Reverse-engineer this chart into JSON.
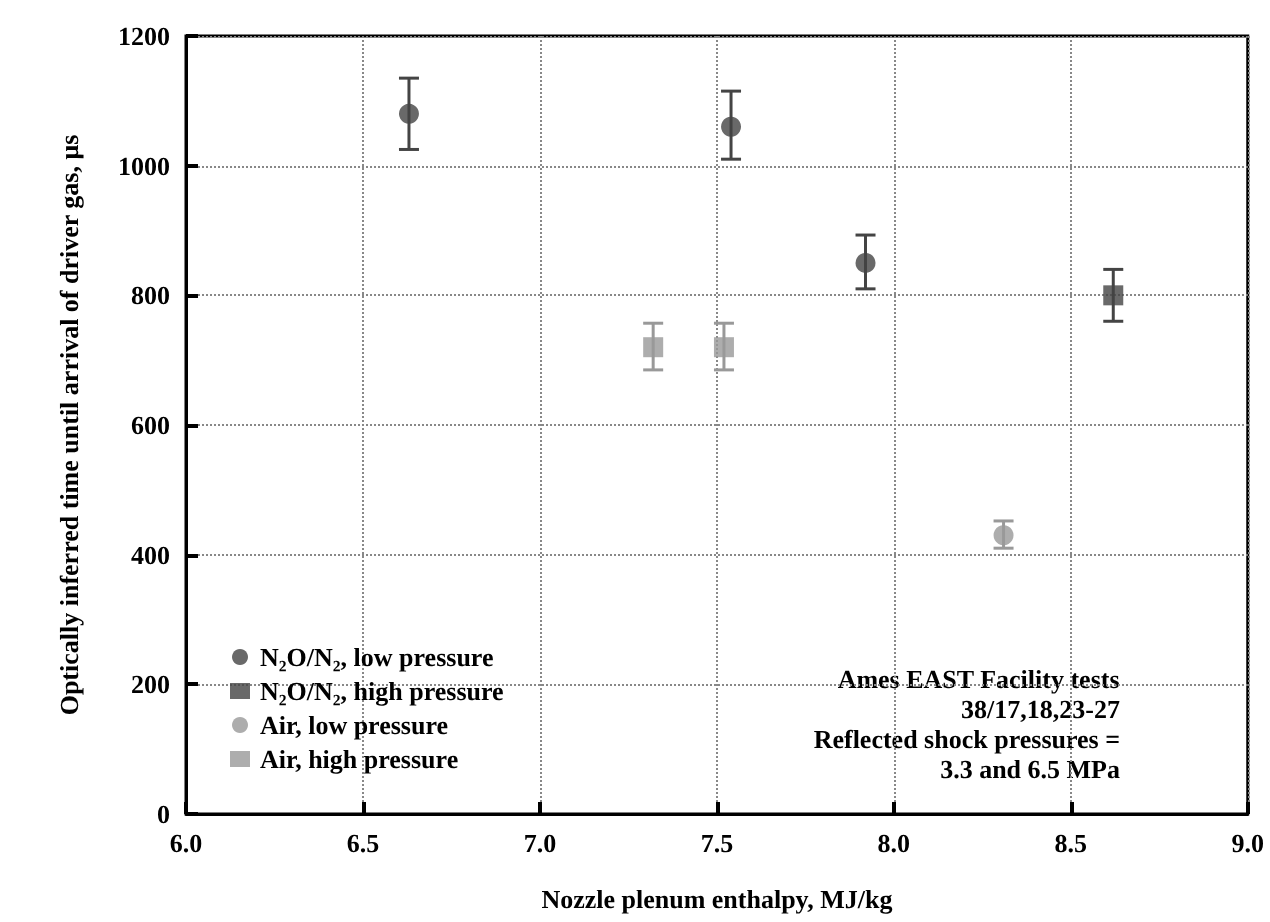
{
  "chart_data": {
    "type": "scatter",
    "xlabel": "Nozzle plenum enthalpy, MJ/kg",
    "ylabel": "Optically inferred time until arrival of driver gas, μs",
    "xlim": [
      6.0,
      9.0
    ],
    "xticks": [
      {
        "value": 6,
        "label": "6.0"
      },
      {
        "value": 6.5,
        "label": "6.5"
      },
      {
        "value": 7,
        "label": "7.0"
      },
      {
        "value": 7.5,
        "label": "7.5"
      },
      {
        "value": 8,
        "label": "8.0"
      },
      {
        "value": 8.5,
        "label": "8.5"
      },
      {
        "value": 9,
        "label": "9.0"
      }
    ],
    "ylim": [
      0,
      1200
    ],
    "yticks": [
      0,
      200,
      400,
      600,
      800,
      1000,
      1200
    ],
    "grid": true,
    "legend": "bottom left",
    "series": [
      {
        "name": "N₂O/N₂, low pressure",
        "color": "#444444",
        "marker": "circle",
        "x": [
          6.63,
          7.54,
          7.92
        ],
        "values": [
          1080,
          1060,
          850
        ],
        "errors": [
          [
            1025,
            1135
          ],
          [
            1010,
            1115
          ],
          [
            810,
            893
          ]
        ]
      },
      {
        "name": "N₂O/N₂, high pressure",
        "color": "#444444",
        "marker": "square",
        "x": [
          8.62
        ],
        "values": [
          800
        ],
        "errors": [
          [
            760,
            840
          ]
        ]
      },
      {
        "name": "Air, low pressure",
        "color": "#999999",
        "marker": "circle",
        "x": [
          8.31
        ],
        "values": [
          430
        ],
        "errors": [
          [
            410,
            452
          ]
        ]
      },
      {
        "name": "Air, high pressure",
        "color": "#999999",
        "marker": "square",
        "x": [
          7.32,
          7.52
        ],
        "values": [
          720,
          720
        ],
        "errors": [
          [
            685,
            757
          ],
          [
            685,
            757
          ]
        ]
      }
    ],
    "annotations": [
      "Ames EAST Facility tests",
      "  38/17,18,23-27",
      "Reflected shock pressures =",
      "  3.3 and 6.5 MPa"
    ]
  }
}
